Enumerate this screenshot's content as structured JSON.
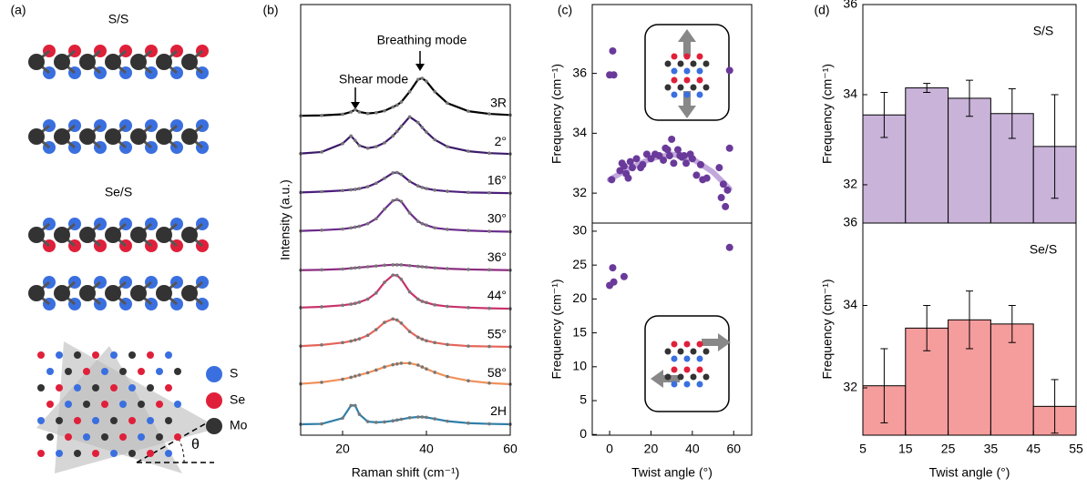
{
  "panel_labels": [
    "(a)",
    "(b)",
    "(c)",
    "(d)"
  ],
  "structures": {
    "labels": [
      "S/S",
      "Se/S"
    ],
    "legend": [
      "S",
      "Se",
      "Mo"
    ],
    "angle": "θ"
  },
  "chart_data": [
    {
      "type": "line",
      "xlabel": "Raman shift (cm⁻¹)",
      "ylabel": "Intensity (a.u.)",
      "annotations": [
        "Shear mode",
        "Breathing mode"
      ],
      "xlim": [
        10,
        60
      ],
      "xticks": [
        20,
        40,
        60
      ],
      "x": [
        10,
        15,
        20,
        22,
        23,
        24,
        26,
        28,
        30,
        32,
        33,
        34,
        36,
        38,
        39,
        40,
        42,
        45,
        50,
        55,
        60
      ],
      "series": [
        {
          "name": "3R",
          "color": "#000000",
          "name_color": "#808080",
          "values": [
            0.02,
            0.03,
            0.06,
            0.12,
            0.18,
            0.12,
            0.08,
            0.1,
            0.15,
            0.25,
            0.3,
            0.38,
            0.65,
            0.97,
            1.0,
            0.92,
            0.65,
            0.35,
            0.14,
            0.07,
            0.04
          ]
        },
        {
          "name": "2°",
          "color": "#3b1a6b",
          "values": [
            0.04,
            0.08,
            0.3,
            0.5,
            0.38,
            0.25,
            0.18,
            0.22,
            0.32,
            0.5,
            0.62,
            0.75,
            1.0,
            0.85,
            0.72,
            0.6,
            0.4,
            0.22,
            0.1,
            0.05,
            0.03
          ]
        },
        {
          "name": "16°",
          "color": "#4b1f7c",
          "values": [
            0.03,
            0.05,
            0.08,
            0.1,
            0.11,
            0.13,
            0.18,
            0.27,
            0.4,
            0.54,
            0.55,
            0.5,
            0.32,
            0.2,
            0.16,
            0.13,
            0.09,
            0.06,
            0.03,
            0.02,
            0.01
          ]
        },
        {
          "name": "30°",
          "color": "#6a2a8c",
          "values": [
            0.03,
            0.05,
            0.08,
            0.11,
            0.13,
            0.15,
            0.22,
            0.35,
            0.6,
            0.82,
            0.85,
            0.8,
            0.5,
            0.28,
            0.22,
            0.18,
            0.11,
            0.07,
            0.04,
            0.02,
            0.01
          ]
        },
        {
          "name": "36°",
          "color": "#8c2d80",
          "values": [
            0.01,
            0.02,
            0.04,
            0.06,
            0.07,
            0.08,
            0.1,
            0.12,
            0.14,
            0.15,
            0.15,
            0.15,
            0.13,
            0.11,
            0.1,
            0.09,
            0.07,
            0.05,
            0.03,
            0.02,
            0.01
          ]
        },
        {
          "name": "44°",
          "color": "#c8326a",
          "values": [
            0.04,
            0.06,
            0.1,
            0.13,
            0.15,
            0.18,
            0.26,
            0.42,
            0.7,
            0.89,
            0.88,
            0.78,
            0.45,
            0.26,
            0.2,
            0.17,
            0.11,
            0.07,
            0.04,
            0.02,
            0.01
          ]
        },
        {
          "name": "55°",
          "color": "#e6645a",
          "values": [
            0.04,
            0.07,
            0.13,
            0.17,
            0.2,
            0.23,
            0.32,
            0.47,
            0.66,
            0.75,
            0.72,
            0.64,
            0.42,
            0.27,
            0.22,
            0.18,
            0.13,
            0.08,
            0.04,
            0.03,
            0.02
          ]
        },
        {
          "name": "58°",
          "color": "#f0915c",
          "values": [
            0.06,
            0.1,
            0.18,
            0.23,
            0.26,
            0.29,
            0.35,
            0.42,
            0.5,
            0.56,
            0.58,
            0.6,
            0.6,
            0.55,
            0.5,
            0.45,
            0.36,
            0.25,
            0.14,
            0.08,
            0.05
          ]
        },
        {
          "name": "2H",
          "color": "#2e7fa8",
          "name_color": "#2e7fa8",
          "values": [
            0.01,
            0.02,
            0.17,
            0.5,
            0.5,
            0.27,
            0.08,
            0.06,
            0.07,
            0.1,
            0.12,
            0.14,
            0.18,
            0.2,
            0.2,
            0.19,
            0.15,
            0.09,
            0.04,
            0.02,
            0.01
          ]
        }
      ]
    },
    {
      "type": "scatter",
      "ylabel": "Frequency (cm⁻¹)",
      "xlim": [
        -8.4,
        68.7
      ],
      "ylim": [
        31.0,
        38.3
      ],
      "yticks": [
        32,
        34,
        36
      ],
      "color": "#6a3a9a",
      "x": [
        0,
        1.5,
        2,
        58,
        1,
        5,
        6,
        7,
        8,
        9,
        10,
        11,
        13,
        15,
        16,
        18,
        20,
        22,
        24,
        26,
        27,
        28,
        29,
        30,
        31,
        33,
        34,
        35,
        36,
        37,
        39,
        40,
        42,
        44,
        45,
        47,
        53,
        54,
        55,
        56,
        57,
        58
      ],
      "values": [
        35.95,
        36.75,
        35.95,
        36.1,
        32.45,
        32.75,
        33.0,
        32.9,
        32.65,
        32.5,
        33.05,
        32.85,
        33.15,
        32.85,
        32.95,
        33.3,
        33.15,
        33.3,
        33.25,
        33.1,
        33.5,
        33.45,
        33.25,
        33.8,
        33.0,
        33.45,
        33.25,
        33.2,
        33.25,
        33.0,
        33.3,
        33.15,
        32.6,
        32.95,
        32.45,
        32.5,
        32.85,
        31.85,
        32.3,
        31.55,
        32.1,
        33.5
      ],
      "fit": {
        "color": "#b79ad6",
        "x": [
          0,
          10,
          20,
          30,
          40,
          50,
          58
        ],
        "values": [
          32.45,
          32.85,
          33.15,
          33.3,
          33.15,
          32.7,
          32.15
        ]
      }
    },
    {
      "type": "scatter",
      "ylabel": "Frequency (cm⁻¹)",
      "xlabel": "Twist angle (°)",
      "xlim": [
        -8.4,
        68.7
      ],
      "xticks": [
        0,
        20,
        40,
        60
      ],
      "ylim": [
        -0.1,
        31.2
      ],
      "yticks": [
        0,
        5,
        10,
        15,
        20,
        25,
        30
      ],
      "color": "#6a3a9a",
      "x": [
        0,
        1.5,
        2,
        7,
        58
      ],
      "values": [
        22,
        24.6,
        22.5,
        23.3,
        27.6
      ]
    },
    {
      "type": "histogram",
      "label": "S/S",
      "ylabel": "Frequency (cm⁻¹)",
      "xlim": [
        5,
        55
      ],
      "ylim": [
        31.15,
        36
      ],
      "yticks": [
        32,
        34,
        36
      ],
      "color": "#c9b3d9",
      "bins": [
        5,
        15,
        25,
        35,
        45,
        55
      ],
      "values": [
        33.55,
        34.15,
        33.92,
        33.58,
        32.85
      ],
      "errors": [
        0.5,
        0.1,
        0.4,
        0.55,
        1.15
      ]
    },
    {
      "type": "histogram",
      "label": "Se/S",
      "ylabel": "Frequency (cm⁻¹)",
      "xlabel": "Twist angle (°)",
      "xlim": [
        5,
        55
      ],
      "xticks": [
        5,
        15,
        25,
        35,
        45,
        55
      ],
      "ylim": [
        30.85,
        36
      ],
      "yticks": [
        32,
        34,
        36
      ],
      "color": "#f59c9c",
      "bins": [
        5,
        15,
        25,
        35,
        45,
        55
      ],
      "values": [
        32.05,
        33.45,
        33.65,
        33.55,
        31.55
      ],
      "errors": [
        0.9,
        0.55,
        0.7,
        0.45,
        0.65
      ]
    }
  ]
}
